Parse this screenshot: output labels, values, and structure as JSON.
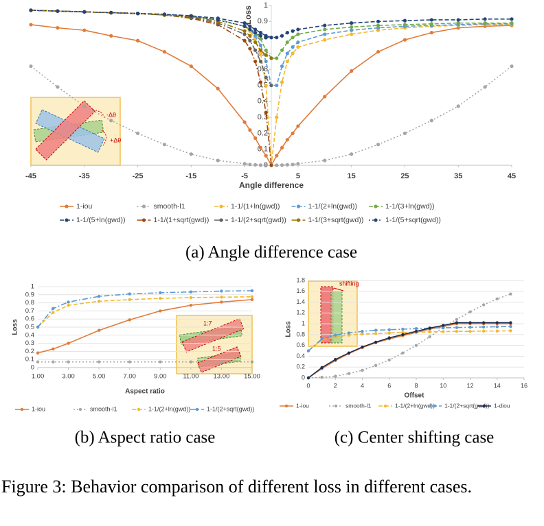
{
  "figure_caption": "Figure 3: Behavior comparison of different loss in different cases.",
  "chart_data": [
    {
      "type": "line",
      "caption": "(a) Angle difference case",
      "ylabel": "Loss",
      "xlabel": "Angle difference",
      "x": [
        -45,
        -40,
        -35,
        -30,
        -25,
        -20,
        -15,
        -10,
        -5,
        -4,
        -3,
        -2,
        -1,
        0,
        1,
        2,
        3,
        4,
        5,
        10,
        15,
        20,
        25,
        30,
        35,
        40,
        45
      ],
      "xlim": [
        -45,
        45
      ],
      "xticks": [
        -45,
        -35,
        -25,
        -15,
        -5,
        5,
        15,
        25,
        35,
        45
      ],
      "ylim": [
        0,
        1
      ],
      "yticks": [
        0,
        0.1,
        0.2,
        0.3,
        0.4,
        0.5,
        0.6,
        0.7,
        0.8,
        0.9,
        1
      ],
      "grid": false,
      "annotations": [
        "-Δθ",
        "+Δθ"
      ],
      "series": [
        {
          "name": "1-iou",
          "color": "#e07b39",
          "style": "solid",
          "values": [
            0.88,
            0.86,
            0.845,
            0.81,
            0.78,
            0.71,
            0.62,
            0.48,
            0.27,
            0.22,
            0.17,
            0.11,
            0.06,
            0,
            0.06,
            0.11,
            0.16,
            0.2,
            0.245,
            0.43,
            0.59,
            0.71,
            0.785,
            0.83,
            0.86,
            0.87,
            0.875
          ]
        },
        {
          "name": "smooth-l1",
          "color": "#a5a5a5",
          "style": "dotted",
          "values": [
            0.62,
            0.49,
            0.37,
            0.28,
            0.2,
            0.13,
            0.07,
            0.03,
            0.01,
            0.005,
            0.003,
            0.001,
            0,
            0,
            0,
            0.001,
            0.003,
            0.005,
            0.01,
            0.03,
            0.07,
            0.13,
            0.2,
            0.28,
            0.37,
            0.49,
            0.62
          ]
        },
        {
          "name": "1-1/(1+ln(gwd))",
          "color": "#f5b82e",
          "style": "dashed",
          "values": [
            0.97,
            0.965,
            0.96,
            0.955,
            0.95,
            0.94,
            0.93,
            0.91,
            0.87,
            0.84,
            0.79,
            0.7,
            0.5,
            0,
            0.3,
            0.52,
            0.65,
            0.7,
            0.74,
            0.785,
            0.82,
            0.845,
            0.86,
            0.87,
            0.875,
            0.88,
            0.88
          ]
        },
        {
          "name": "1-1/(2+ln(gwd))",
          "color": "#5b9bd5",
          "style": "dashed",
          "values": [
            0.97,
            0.965,
            0.96,
            0.955,
            0.95,
            0.94,
            0.93,
            0.91,
            0.87,
            0.85,
            0.81,
            0.75,
            0.65,
            0.5,
            0.5,
            0.62,
            0.7,
            0.74,
            0.77,
            0.82,
            0.845,
            0.86,
            0.87,
            0.875,
            0.88,
            0.885,
            0.885
          ]
        },
        {
          "name": "1-1/(3+ln(gwd))",
          "color": "#70ad47",
          "style": "dashed",
          "values": [
            0.97,
            0.965,
            0.96,
            0.955,
            0.95,
            0.94,
            0.93,
            0.91,
            0.87,
            0.85,
            0.83,
            0.79,
            0.72,
            0.67,
            0.67,
            0.72,
            0.77,
            0.8,
            0.82,
            0.85,
            0.865,
            0.875,
            0.88,
            0.885,
            0.89,
            0.89,
            0.89
          ]
        },
        {
          "name": "1-1/(5+ln(gwd))",
          "color": "#264478",
          "style": "dashed",
          "values": [
            0.97,
            0.965,
            0.96,
            0.955,
            0.95,
            0.945,
            0.935,
            0.92,
            0.89,
            0.87,
            0.85,
            0.83,
            0.81,
            0.8,
            0.8,
            0.81,
            0.83,
            0.84,
            0.85,
            0.875,
            0.89,
            0.9,
            0.905,
            0.91,
            0.91,
            0.915,
            0.915
          ]
        },
        {
          "name": "1-1/(1+sqrt(gwd))",
          "color": "#9e480e",
          "style": "dashdot",
          "values": [
            0.97,
            0.965,
            0.96,
            0.955,
            0.95,
            0.94,
            0.92,
            0.88,
            0.78,
            0.73,
            0.65,
            0.52,
            0.33,
            0,
            null,
            null,
            null,
            null,
            null,
            null,
            null,
            null,
            null,
            null,
            null,
            null,
            null
          ]
        },
        {
          "name": "1-1/(2+sqrt(gwd))",
          "color": "#636363",
          "style": "dashdot",
          "values": [
            0.97,
            0.965,
            0.96,
            0.955,
            0.95,
            0.94,
            0.925,
            0.89,
            0.82,
            0.78,
            0.72,
            0.65,
            0.55,
            0.5,
            null,
            null,
            null,
            null,
            null,
            null,
            null,
            null,
            null,
            null,
            null,
            null,
            null
          ]
        },
        {
          "name": "1-1/(3+sqrt(gwd))",
          "color": "#997300",
          "style": "dashdot",
          "values": [
            0.97,
            0.965,
            0.96,
            0.955,
            0.95,
            0.94,
            0.93,
            0.9,
            0.84,
            0.81,
            0.77,
            0.72,
            0.69,
            0.67,
            null,
            null,
            null,
            null,
            null,
            null,
            null,
            null,
            null,
            null,
            null,
            null,
            null
          ]
        },
        {
          "name": "1-1/(5+sqrt(gwd))",
          "color": "#264478",
          "style": "dotted",
          "values": [
            0.97,
            0.965,
            0.96,
            0.955,
            0.95,
            0.945,
            0.935,
            0.91,
            0.87,
            0.85,
            0.83,
            0.81,
            0.8,
            0.8,
            null,
            null,
            null,
            null,
            null,
            null,
            null,
            null,
            null,
            null,
            null,
            null,
            null
          ]
        }
      ]
    },
    {
      "type": "line",
      "caption": "(b) Aspect ratio case",
      "ylabel": "Loss",
      "xlabel": "Aspect ratio",
      "x": [
        1,
        2,
        3,
        5,
        7,
        9,
        11,
        13,
        15
      ],
      "xlim": [
        1,
        15
      ],
      "xticks": [
        {
          "value": 1,
          "label": "1.00"
        },
        {
          "value": 3,
          "label": "3.00"
        },
        {
          "value": 5,
          "label": "5.00"
        },
        {
          "value": 7,
          "label": "7.00"
        },
        {
          "value": 9,
          "label": "9.00"
        },
        {
          "value": 11,
          "label": "11.00"
        },
        {
          "value": 13,
          "label": "13.00"
        },
        {
          "value": 15,
          "label": "15.00"
        }
      ],
      "ylim": [
        0,
        1
      ],
      "yticks": [
        0,
        0.1,
        0.2,
        0.3,
        0.4,
        0.5,
        0.6,
        0.7,
        0.8,
        0.9,
        1
      ],
      "grid": true,
      "annotations": [
        "1:7",
        "1:5"
      ],
      "series": [
        {
          "name": "1-iou",
          "color": "#e07b39",
          "style": "solid",
          "values": [
            0.18,
            0.23,
            0.3,
            0.46,
            0.59,
            0.7,
            0.77,
            0.81,
            0.84
          ]
        },
        {
          "name": "smooth-l1",
          "color": "#a5a5a5",
          "style": "dotted",
          "values": [
            0.07,
            0.07,
            0.07,
            0.07,
            0.07,
            0.07,
            0.07,
            0.07,
            0.07
          ]
        },
        {
          "name": "1-1/(2+ln(gwd))",
          "color": "#f5b82e",
          "style": "dashed",
          "values": [
            0.5,
            0.68,
            0.77,
            0.82,
            0.84,
            0.855,
            0.865,
            0.87,
            0.875
          ]
        },
        {
          "name": "1-1/(2+sqrt(gwd))",
          "color": "#5b9bd5",
          "style": "dashdot",
          "values": [
            0.5,
            0.73,
            0.81,
            0.88,
            0.91,
            0.925,
            0.935,
            0.945,
            0.95
          ]
        }
      ]
    },
    {
      "type": "line",
      "caption": "(c) Center shifting case",
      "ylabel": "Loss",
      "xlabel": "Offset",
      "x": [
        0,
        1,
        2,
        3,
        4,
        5,
        6,
        7,
        8,
        9,
        10,
        11,
        12,
        13,
        14,
        15
      ],
      "xlim": [
        0,
        16
      ],
      "xticks": [
        0,
        2,
        4,
        6,
        8,
        10,
        12,
        14,
        16
      ],
      "ylim": [
        0,
        1.8
      ],
      "yticks": [
        0,
        0.2,
        0.4,
        0.6,
        0.8,
        1,
        1.2,
        1.4,
        1.6,
        1.8
      ],
      "grid": true,
      "annotations": [
        "shifting"
      ],
      "series": [
        {
          "name": "1-iou",
          "color": "#e07b39",
          "style": "solid",
          "values": [
            0,
            0.17,
            0.32,
            0.45,
            0.56,
            0.65,
            0.72,
            0.78,
            0.84,
            0.9,
            0.95,
            1,
            1,
            1,
            1,
            1
          ]
        },
        {
          "name": "smooth-l1",
          "color": "#a5a5a5",
          "style": "dotted",
          "values": [
            0,
            0.01,
            0.03,
            0.08,
            0.14,
            0.23,
            0.33,
            0.46,
            0.6,
            0.76,
            0.93,
            1.08,
            1.22,
            1.35,
            1.46,
            1.55
          ]
        },
        {
          "name": "1-1/(2+ln(gwd))",
          "color": "#f5b82e",
          "style": "dashed",
          "values": [
            0.5,
            0.7,
            0.76,
            0.79,
            0.81,
            0.82,
            0.83,
            0.84,
            0.845,
            0.85,
            0.855,
            0.86,
            0.86,
            0.865,
            0.865,
            0.87
          ]
        },
        {
          "name": "1-1/(2+sqrt(gwd))",
          "color": "#5b9bd5",
          "style": "dashdot",
          "values": [
            0.5,
            0.72,
            0.79,
            0.83,
            0.86,
            0.88,
            0.89,
            0.9,
            0.91,
            0.92,
            0.925,
            0.93,
            0.935,
            0.94,
            0.945,
            0.95
          ]
        },
        {
          "name": "1-diou",
          "color": "#1f2d50",
          "style": "solid",
          "values": [
            0,
            0.19,
            0.34,
            0.46,
            0.57,
            0.66,
            0.74,
            0.8,
            0.86,
            0.92,
            0.97,
            1.02,
            1.02,
            1.02,
            1.02,
            1.02
          ]
        }
      ]
    }
  ]
}
